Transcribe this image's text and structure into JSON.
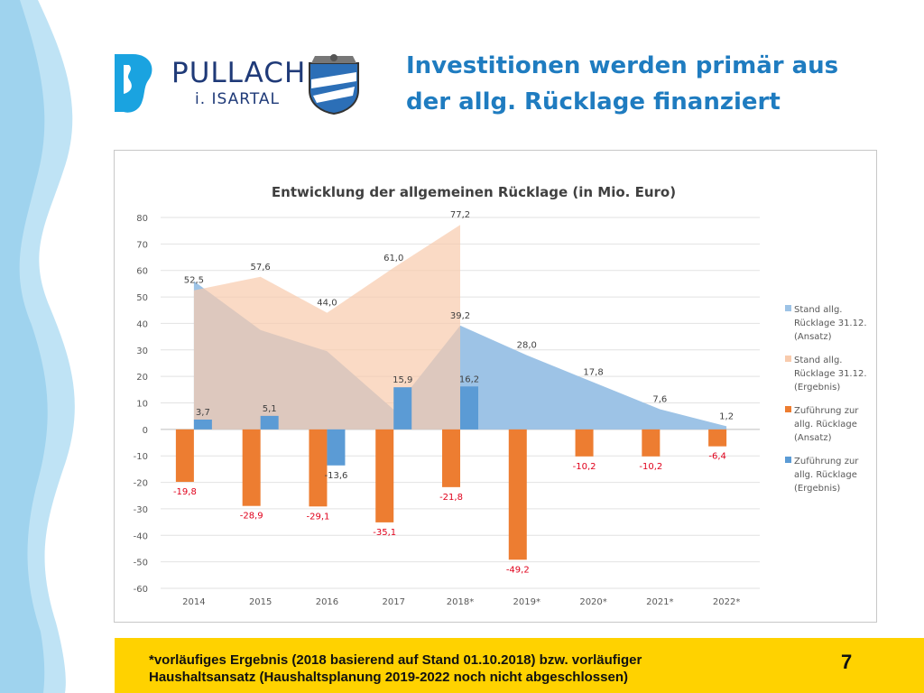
{
  "logo": {
    "name": "PULLACH",
    "sub": "i. ISARTAL"
  },
  "headline": {
    "line1": "Investitionen werden primär aus",
    "line2": "der allg. Rücklage finanziert"
  },
  "footer": {
    "note_line1": "*vorläufiges Ergebnis (2018 basierend auf Stand 01.10.2018) bzw. vorläufiger",
    "note_line2": "Haushaltsansatz (Haushaltsplanung 2019-2022 noch nicht abgeschlossen)",
    "page_number": "7"
  },
  "colors": {
    "title_blue": "#1f7cc0",
    "footer_yellow": "#ffd200",
    "area_ansatz": "#9dc3e6",
    "area_ergebnis": "#f8cbad",
    "bar_ansatz": "#ed7d31",
    "bar_ergebnis": "#5b9bd5",
    "negative_label": "#e0001b"
  },
  "chart_data": {
    "type": "bar",
    "title": "Entwicklung der allgemeinen Rücklage (in Mio. Euro)",
    "categories": [
      "2014",
      "2015",
      "2016",
      "2017",
      "2018*",
      "2019*",
      "2020*",
      "2021*",
      "2022*"
    ],
    "ylim": [
      -60,
      80
    ],
    "yticks": [
      "80",
      "70",
      "60",
      "50",
      "40",
      "30",
      "20",
      "10",
      "0",
      "-10",
      "-20",
      "-30",
      "-40",
      "-50",
      "-60"
    ],
    "grid": true,
    "legend_position": "right",
    "series": [
      {
        "name": "Stand allg. Rücklage 31.12. (Ansatz)",
        "type": "area",
        "color": "#9dc3e6",
        "values": [
          56.0,
          37.5,
          29.5,
          7.5,
          39.2,
          28.0,
          17.8,
          7.6,
          1.2
        ],
        "labels": [
          null,
          null,
          null,
          null,
          "39,2",
          "28,0",
          "17,8",
          "7,6",
          "1,2"
        ]
      },
      {
        "name": "Stand allg. Rücklage 31.12. (Ergebnis)",
        "type": "area",
        "color": "#f8cbad",
        "values": [
          52.5,
          57.6,
          44.0,
          61.0,
          77.2,
          null,
          null,
          null,
          null
        ],
        "labels": [
          "52,5",
          "57,6",
          "44,0",
          "61,0",
          "77,2",
          null,
          null,
          null,
          null
        ]
      },
      {
        "name": "Zuführung zur allg. Rücklage (Ansatz)",
        "type": "bar",
        "color": "#ed7d31",
        "values": [
          -19.8,
          -28.9,
          -29.1,
          -35.1,
          -21.8,
          -49.2,
          -10.2,
          -10.2,
          -6.4
        ],
        "labels": [
          "-19,8",
          "-28,9",
          "-29,1",
          "-35,1",
          "-21,8",
          "-49,2",
          "-10,2",
          "-10,2",
          "-6,4"
        ]
      },
      {
        "name": "Zuführung zur allg. Rücklage (Ergebnis)",
        "type": "bar",
        "color": "#5b9bd5",
        "values": [
          3.7,
          5.1,
          -13.6,
          15.9,
          16.2,
          null,
          null,
          null,
          null
        ],
        "labels": [
          "3,7",
          "5,1",
          "-13,6",
          "15,9",
          "16,2",
          null,
          null,
          null,
          null
        ]
      }
    ],
    "legend": [
      {
        "lines": [
          "Stand allg.",
          "Rücklage 31.12.",
          "(Ansatz)"
        ],
        "color": "#9dc3e6"
      },
      {
        "lines": [
          "Stand allg.",
          "Rücklage 31.12.",
          "(Ergebnis)"
        ],
        "color": "#f8cbad"
      },
      {
        "lines": [
          "Zuführung zur",
          "allg. Rücklage",
          "(Ansatz)"
        ],
        "color": "#ed7d31"
      },
      {
        "lines": [
          "Zuführung zur",
          "allg. Rücklage",
          "(Ergebnis)"
        ],
        "color": "#5b9bd5"
      }
    ]
  }
}
